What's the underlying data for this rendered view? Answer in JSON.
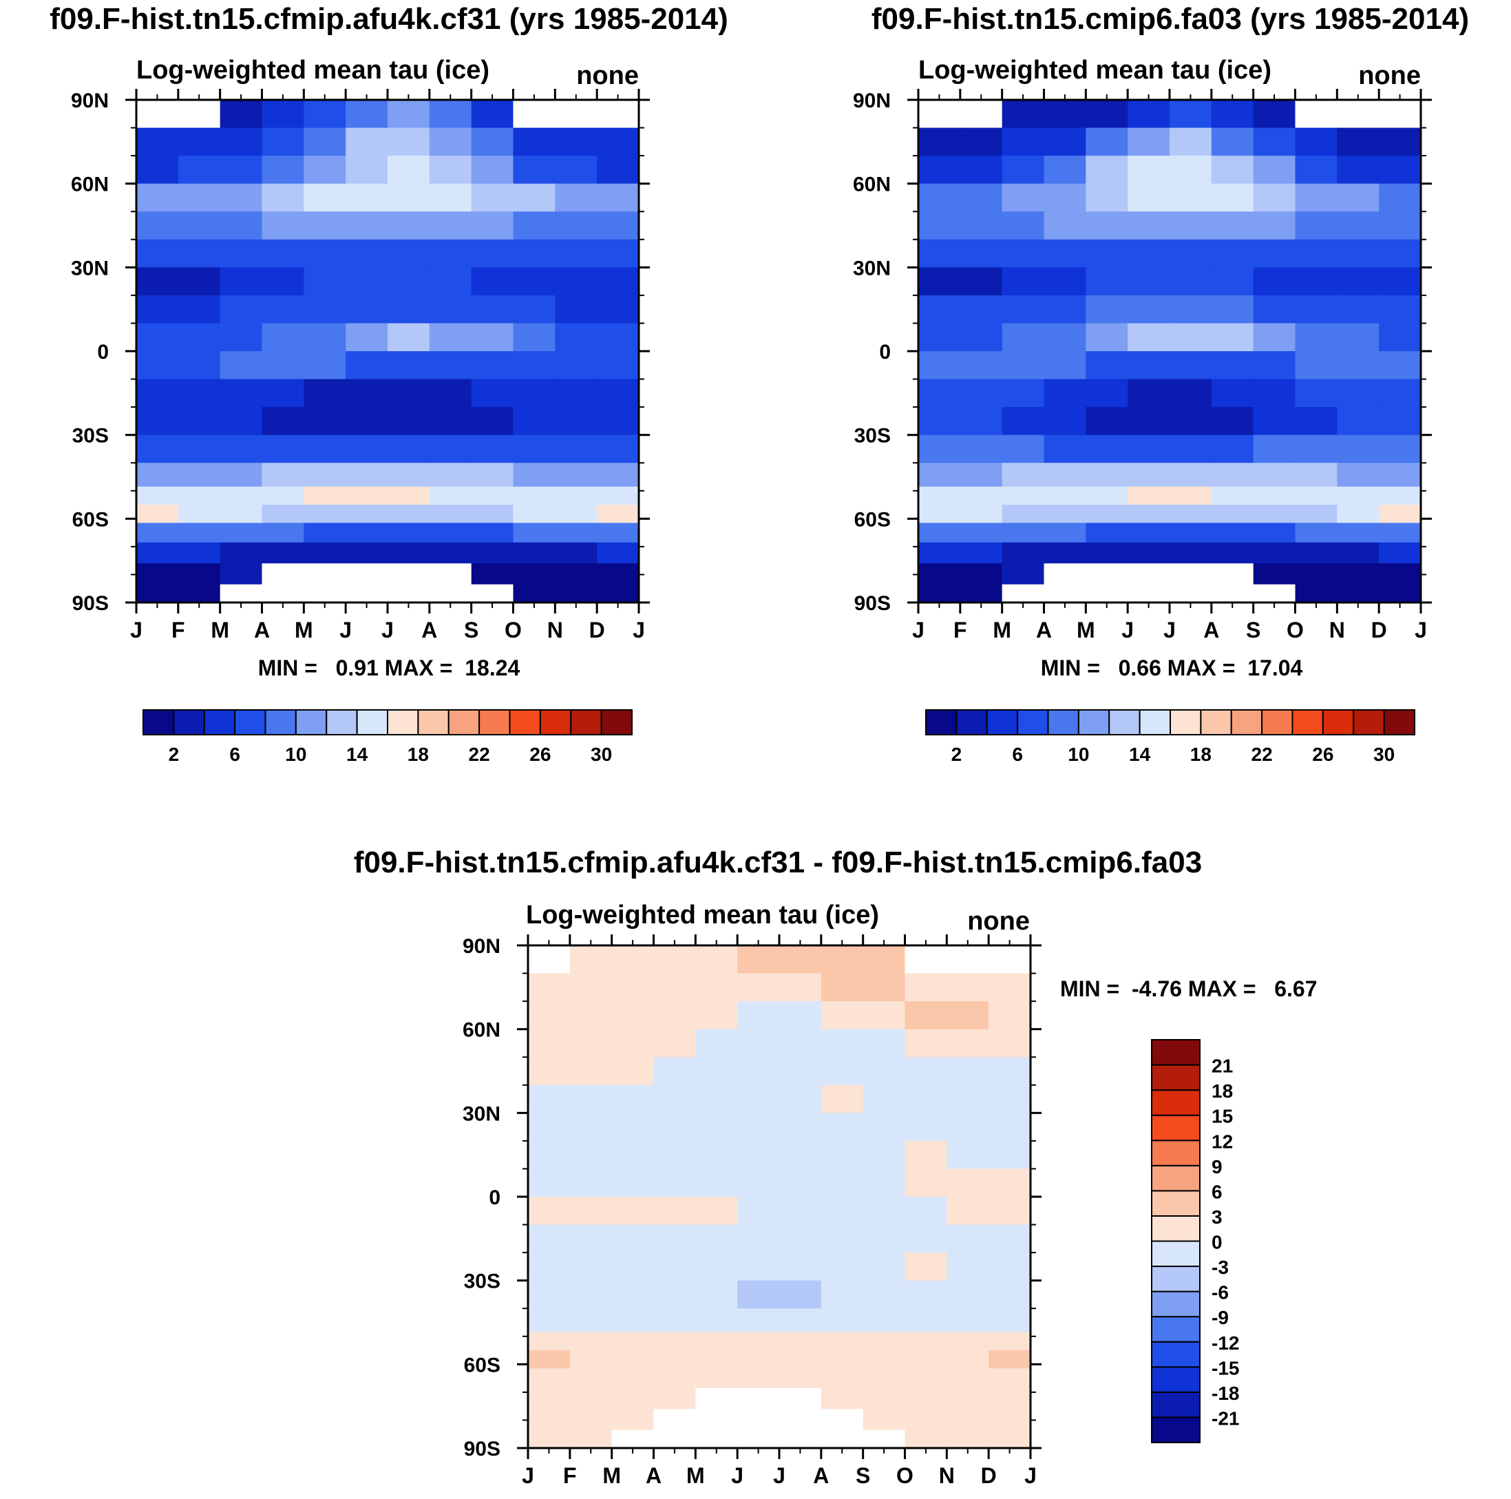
{
  "chart_data": [
    {
      "type": "heatmap",
      "panel": "top-left",
      "title": "f09.F-hist.tn15.cfmip.afu4k.cf31 (yrs 1985-2014)",
      "subtitle": "Log-weighted mean tau (ice)",
      "units_label": "none",
      "x_ticks": [
        "J",
        "F",
        "M",
        "A",
        "M",
        "J",
        "J",
        "A",
        "S",
        "O",
        "N",
        "D",
        "J"
      ],
      "y_ticks": [
        "90N",
        "60N",
        "30N",
        "0",
        "30S",
        "60S",
        "90S"
      ],
      "ylim": [
        -90,
        90
      ],
      "stats_label": "MIN =   0.91 MAX =  18.24",
      "min": 0.91,
      "max": 18.24,
      "colorbar": {
        "orientation": "horizontal",
        "tick_labels": [
          "2",
          "6",
          "10",
          "14",
          "18",
          "22",
          "26",
          "30"
        ],
        "levels": [
          0,
          2,
          4,
          6,
          8,
          10,
          12,
          14,
          16,
          18,
          20,
          22,
          24,
          26,
          28,
          30,
          32
        ]
      },
      "field": {
        "lat_rows": [
          85,
          75,
          65,
          55,
          45,
          35,
          25,
          15,
          5,
          -5,
          -15,
          -25,
          -35,
          -45,
          -52,
          -58,
          -65,
          -72,
          -80,
          -87
        ],
        "months": [
          "Jan",
          "Feb",
          "Mar",
          "Apr",
          "May",
          "Jun",
          "Jul",
          "Aug",
          "Sep",
          "Oct",
          "Nov",
          "Dec"
        ],
        "values": [
          [
            null,
            null,
            3,
            4,
            6,
            9,
            11,
            9,
            5,
            null,
            null,
            null
          ],
          [
            4,
            4,
            5,
            7,
            9,
            12,
            13,
            11,
            8,
            5,
            4,
            4
          ],
          [
            5,
            6,
            7,
            9,
            11,
            13,
            14,
            12,
            10,
            7,
            6,
            5
          ],
          [
            10,
            10,
            11,
            12,
            14,
            15,
            14,
            14,
            13,
            12,
            11,
            10
          ],
          [
            8,
            8,
            9,
            10,
            10,
            11,
            11,
            10,
            10,
            9,
            8,
            8
          ],
          [
            6,
            6,
            6,
            7,
            7,
            7,
            7,
            7,
            6,
            6,
            6,
            6
          ],
          [
            3,
            3,
            4,
            5,
            6,
            6,
            6,
            6,
            5,
            5,
            4,
            4
          ],
          [
            5,
            5,
            6,
            6,
            7,
            7,
            7,
            7,
            6,
            6,
            5,
            5
          ],
          [
            6,
            6,
            7,
            8,
            9,
            11,
            12,
            11,
            10,
            8,
            7,
            6
          ],
          [
            7,
            7,
            8,
            9,
            8,
            7,
            7,
            7,
            7,
            7,
            7,
            7
          ],
          [
            5,
            5,
            5,
            4,
            3,
            3,
            3,
            3,
            4,
            5,
            5,
            5
          ],
          [
            5,
            5,
            4,
            3,
            2,
            2,
            2,
            2,
            3,
            4,
            5,
            5
          ],
          [
            7,
            7,
            7,
            6,
            6,
            6,
            6,
            6,
            6,
            7,
            7,
            7
          ],
          [
            10,
            10,
            11,
            12,
            13,
            13,
            13,
            13,
            12,
            11,
            10,
            10
          ],
          [
            14,
            14,
            15,
            15,
            16,
            16,
            16,
            15,
            15,
            14,
            14,
            14
          ],
          [
            17,
            15,
            14,
            13,
            13,
            12,
            12,
            12,
            13,
            14,
            15,
            17
          ],
          [
            9,
            9,
            8,
            8,
            7,
            7,
            7,
            7,
            7,
            8,
            8,
            9
          ],
          [
            4,
            4,
            3,
            3,
            3,
            3,
            3,
            3,
            3,
            3,
            3,
            4
          ],
          [
            1,
            1,
            2,
            null,
            null,
            null,
            null,
            null,
            1,
            1,
            1,
            1
          ],
          [
            1,
            1,
            null,
            null,
            null,
            null,
            null,
            null,
            null,
            1,
            1,
            1
          ]
        ]
      }
    },
    {
      "type": "heatmap",
      "panel": "top-right",
      "title": "f09.F-hist.tn15.cmip6.fa03 (yrs 1985-2014)",
      "subtitle": "Log-weighted mean tau (ice)",
      "units_label": "none",
      "x_ticks": [
        "J",
        "F",
        "M",
        "A",
        "M",
        "J",
        "J",
        "A",
        "S",
        "O",
        "N",
        "D",
        "J"
      ],
      "y_ticks": [
        "90N",
        "60N",
        "30N",
        "0",
        "30S",
        "60S",
        "90S"
      ],
      "ylim": [
        -90,
        90
      ],
      "stats_label": "MIN =   0.66 MAX =  17.04",
      "min": 0.66,
      "max": 17.04,
      "colorbar": {
        "orientation": "horizontal",
        "tick_labels": [
          "2",
          "6",
          "10",
          "14",
          "18",
          "22",
          "26",
          "30"
        ],
        "levels": [
          0,
          2,
          4,
          6,
          8,
          10,
          12,
          14,
          16,
          18,
          20,
          22,
          24,
          26,
          28,
          30,
          32
        ]
      },
      "field": {
        "lat_rows": [
          85,
          75,
          65,
          55,
          45,
          35,
          25,
          15,
          5,
          -5,
          -15,
          -25,
          -35,
          -45,
          -52,
          -58,
          -65,
          -72,
          -80,
          -87
        ],
        "months": [
          "Jan",
          "Feb",
          "Mar",
          "Apr",
          "May",
          "Jun",
          "Jul",
          "Aug",
          "Sep",
          "Oct",
          "Nov",
          "Dec"
        ],
        "values": [
          [
            null,
            null,
            2,
            2,
            3,
            5,
            6,
            4,
            2,
            null,
            null,
            null
          ],
          [
            3,
            3,
            4,
            5,
            8,
            11,
            12,
            9,
            6,
            4,
            3,
            3
          ],
          [
            5,
            5,
            6,
            9,
            12,
            14,
            15,
            13,
            10,
            7,
            5,
            5
          ],
          [
            9,
            9,
            10,
            11,
            13,
            15,
            15,
            14,
            13,
            11,
            10,
            9
          ],
          [
            9,
            8,
            9,
            10,
            11,
            11,
            11,
            10,
            10,
            9,
            9,
            9
          ],
          [
            6,
            6,
            7,
            7,
            7,
            7,
            7,
            7,
            7,
            6,
            6,
            6
          ],
          [
            3,
            3,
            4,
            5,
            6,
            6,
            6,
            6,
            5,
            5,
            4,
            4
          ],
          [
            6,
            6,
            6,
            7,
            8,
            8,
            8,
            8,
            7,
            6,
            6,
            6
          ],
          [
            7,
            7,
            8,
            9,
            11,
            12,
            13,
            12,
            11,
            9,
            8,
            7
          ],
          [
            9,
            9,
            9,
            8,
            7,
            7,
            7,
            7,
            7,
            8,
            8,
            9
          ],
          [
            6,
            6,
            6,
            5,
            4,
            3,
            3,
            4,
            5,
            6,
            6,
            6
          ],
          [
            6,
            6,
            5,
            4,
            3,
            3,
            3,
            3,
            4,
            5,
            6,
            6
          ],
          [
            8,
            8,
            8,
            7,
            7,
            7,
            7,
            7,
            8,
            8,
            8,
            8
          ],
          [
            11,
            11,
            12,
            12,
            13,
            13,
            13,
            13,
            13,
            12,
            11,
            11
          ],
          [
            14,
            14,
            15,
            15,
            15,
            16,
            16,
            15,
            14,
            14,
            14,
            14
          ],
          [
            15,
            14,
            13,
            13,
            12,
            12,
            12,
            12,
            12,
            13,
            14,
            16
          ],
          [
            9,
            9,
            8,
            8,
            7,
            7,
            7,
            7,
            7,
            8,
            8,
            9
          ],
          [
            4,
            4,
            3,
            3,
            3,
            3,
            3,
            3,
            3,
            3,
            3,
            4
          ],
          [
            1,
            1,
            2,
            null,
            null,
            null,
            null,
            null,
            1,
            1,
            1,
            1
          ],
          [
            1,
            1,
            null,
            null,
            null,
            null,
            null,
            null,
            null,
            1,
            1,
            1
          ]
        ]
      }
    },
    {
      "type": "heatmap",
      "panel": "bottom",
      "title": "f09.F-hist.tn15.cfmip.afu4k.cf31 - f09.F-hist.tn15.cmip6.fa03",
      "subtitle": "Log-weighted mean tau (ice)",
      "units_label": "none",
      "x_ticks": [
        "J",
        "F",
        "M",
        "A",
        "M",
        "J",
        "J",
        "A",
        "S",
        "O",
        "N",
        "D",
        "J"
      ],
      "y_ticks": [
        "90N",
        "60N",
        "30N",
        "0",
        "30S",
        "60S",
        "90S"
      ],
      "ylim": [
        -90,
        90
      ],
      "stats_label": "MIN =  -4.76 MAX =   6.67",
      "min": -4.76,
      "max": 6.67,
      "colorbar": {
        "orientation": "vertical",
        "tick_labels": [
          "21",
          "18",
          "15",
          "12",
          "9",
          "6",
          "3",
          "0",
          "-3",
          "-6",
          "-9",
          "-12",
          "-15",
          "-18",
          "-21"
        ],
        "levels": [
          -24,
          -21,
          -18,
          -15,
          -12,
          -9,
          -6,
          -3,
          0,
          3,
          6,
          9,
          12,
          15,
          18,
          21,
          24
        ]
      },
      "field": {
        "lat_rows": [
          85,
          75,
          65,
          55,
          45,
          35,
          25,
          15,
          5,
          -5,
          -15,
          -25,
          -35,
          -45,
          -52,
          -58,
          -65,
          -72,
          -80,
          -87
        ],
        "months": [
          "Jan",
          "Feb",
          "Mar",
          "Apr",
          "May",
          "Jun",
          "Jul",
          "Aug",
          "Sep",
          "Oct",
          "Nov",
          "Dec"
        ],
        "values": [
          [
            null,
            1,
            1,
            2,
            2,
            4,
            5,
            5,
            3,
            null,
            null,
            null
          ],
          [
            1,
            1,
            1,
            1,
            1,
            2,
            2,
            3,
            3,
            2,
            2,
            1
          ],
          [
            1,
            1,
            1,
            1,
            1,
            -1,
            -1,
            1,
            2,
            3,
            3,
            2
          ],
          [
            1,
            1,
            1,
            1,
            -1,
            -1,
            -1,
            -1,
            -1,
            1,
            1,
            1
          ],
          [
            1,
            1,
            1,
            -1,
            -1,
            -1,
            -1,
            -1,
            -1,
            -1,
            -1,
            -1
          ],
          [
            -1,
            -1,
            -1,
            -1,
            -1,
            -1,
            -1,
            1,
            -1,
            -1,
            -1,
            -1
          ],
          [
            -1,
            -1,
            -1,
            -1,
            -1,
            -1,
            -1,
            -1,
            -1,
            -1,
            -1,
            -1
          ],
          [
            -1,
            -1,
            -1,
            -1,
            -1,
            -1,
            -1,
            -1,
            -1,
            1,
            -1,
            -1
          ],
          [
            -1,
            -1,
            -1,
            -1,
            -1,
            -1,
            -1,
            -1,
            -1,
            1,
            1,
            1
          ],
          [
            1,
            1,
            1,
            1,
            1,
            -1,
            -1,
            -1,
            -1,
            -1,
            1,
            1
          ],
          [
            -1,
            -1,
            -1,
            -1,
            -1,
            -1,
            -1,
            -1,
            -1,
            -1,
            -1,
            -1
          ],
          [
            -1,
            -1,
            -1,
            -1,
            -1,
            -1,
            -1,
            -1,
            -1,
            1,
            -1,
            -1
          ],
          [
            -1,
            -1,
            -1,
            -1,
            -2,
            -4,
            -4,
            -2,
            -1,
            -1,
            -1,
            -1
          ],
          [
            -1,
            -1,
            -1,
            -1,
            -1,
            -1,
            -1,
            -1,
            -1,
            -1,
            -1,
            -1
          ],
          [
            1,
            1,
            1,
            1,
            1,
            1,
            1,
            1,
            1,
            1,
            1,
            1
          ],
          [
            4,
            2,
            1,
            1,
            1,
            1,
            1,
            1,
            1,
            1,
            2,
            4
          ],
          [
            1,
            1,
            1,
            1,
            1,
            1,
            1,
            1,
            1,
            1,
            1,
            1
          ],
          [
            1,
            1,
            1,
            1,
            null,
            null,
            null,
            1,
            1,
            1,
            1,
            1
          ],
          [
            1,
            1,
            1,
            null,
            null,
            null,
            null,
            null,
            1,
            1,
            1,
            1
          ],
          [
            1,
            1,
            null,
            null,
            null,
            null,
            null,
            null,
            null,
            1,
            1,
            1
          ]
        ]
      }
    }
  ],
  "colors": {
    "sequential": [
      "#08088a",
      "#0a1db0",
      "#0f33d6",
      "#1f4ee8",
      "#4877ef",
      "#7e9ff4",
      "#b3c8f8",
      "#d7e6fb",
      "#fce3d4",
      "#fbc7ab",
      "#f8a37f",
      "#f67b4f",
      "#f44b1d",
      "#d92d0c",
      "#b31d0a",
      "#820a0a"
    ],
    "missing": "#ffffff"
  }
}
